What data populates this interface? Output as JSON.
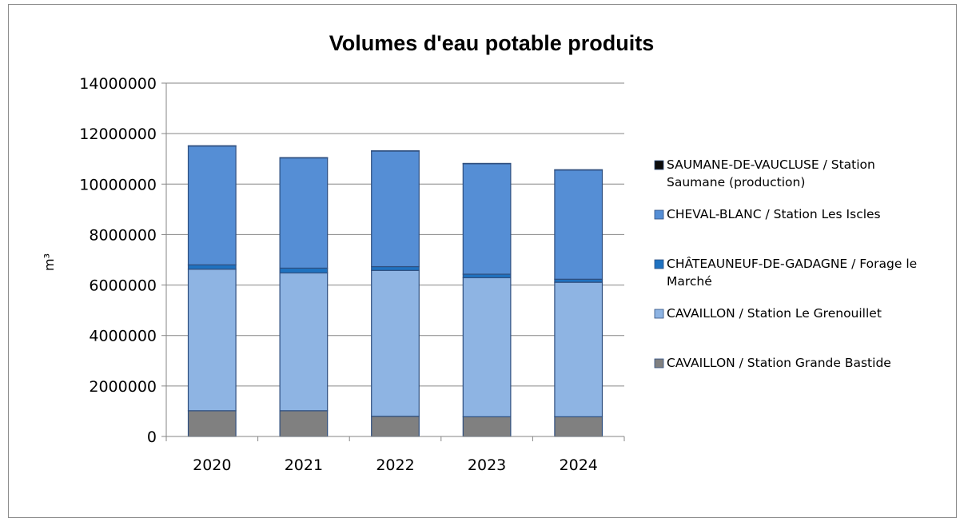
{
  "chart_data": {
    "type": "bar",
    "stacked": true,
    "title": "Volumes d'eau potable produits",
    "xlabel": "",
    "ylabel": "m³",
    "ylim": [
      0,
      14000000
    ],
    "yticks": [
      "0",
      "2000000",
      "4000000",
      "6000000",
      "8000000",
      "10000000",
      "12000000",
      "14000000"
    ],
    "grid": true,
    "legend_position": "right",
    "categories": [
      "2020",
      "2021",
      "2022",
      "2023",
      "2024"
    ],
    "series": [
      {
        "name": "CAVAILLON / Station Grande Bastide",
        "color": "#808080",
        "values": [
          1020000,
          1020000,
          800000,
          780000,
          780000
        ]
      },
      {
        "name": "CAVAILLON / Station Le Grenouillet",
        "color": "#8eb4e3",
        "values": [
          5610000,
          5460000,
          5780000,
          5510000,
          5330000
        ]
      },
      {
        "name": "CHÂTEAUNEUF-DE-GADAGNE / Forage le Marché",
        "color": "#1f72c0",
        "values": [
          170000,
          190000,
          150000,
          140000,
          120000
        ]
      },
      {
        "name": "CHEVAL-BLANC / Station Les Iscles",
        "color": "#558ed5",
        "values": [
          4710000,
          4370000,
          4580000,
          4380000,
          4330000
        ]
      },
      {
        "name": "SAUMANE-DE-VAUCLUSE / Station Saumane (production)",
        "color": "#0d0d0d",
        "values": [
          10000,
          10000,
          10000,
          10000,
          10000
        ]
      }
    ],
    "legend_lines": [
      [
        "SAUMANE-DE-VAUCLUSE / Station",
        "Saumane (production)"
      ],
      [
        "CHEVAL-BLANC / Station Les Iscles"
      ],
      [
        "CHÂTEAUNEUF-DE-GADAGNE / Forage le",
        "Marché"
      ],
      [
        "CAVAILLON / Station Le Grenouillet"
      ],
      [
        "CAVAILLON / Station Grande Bastide"
      ]
    ]
  }
}
